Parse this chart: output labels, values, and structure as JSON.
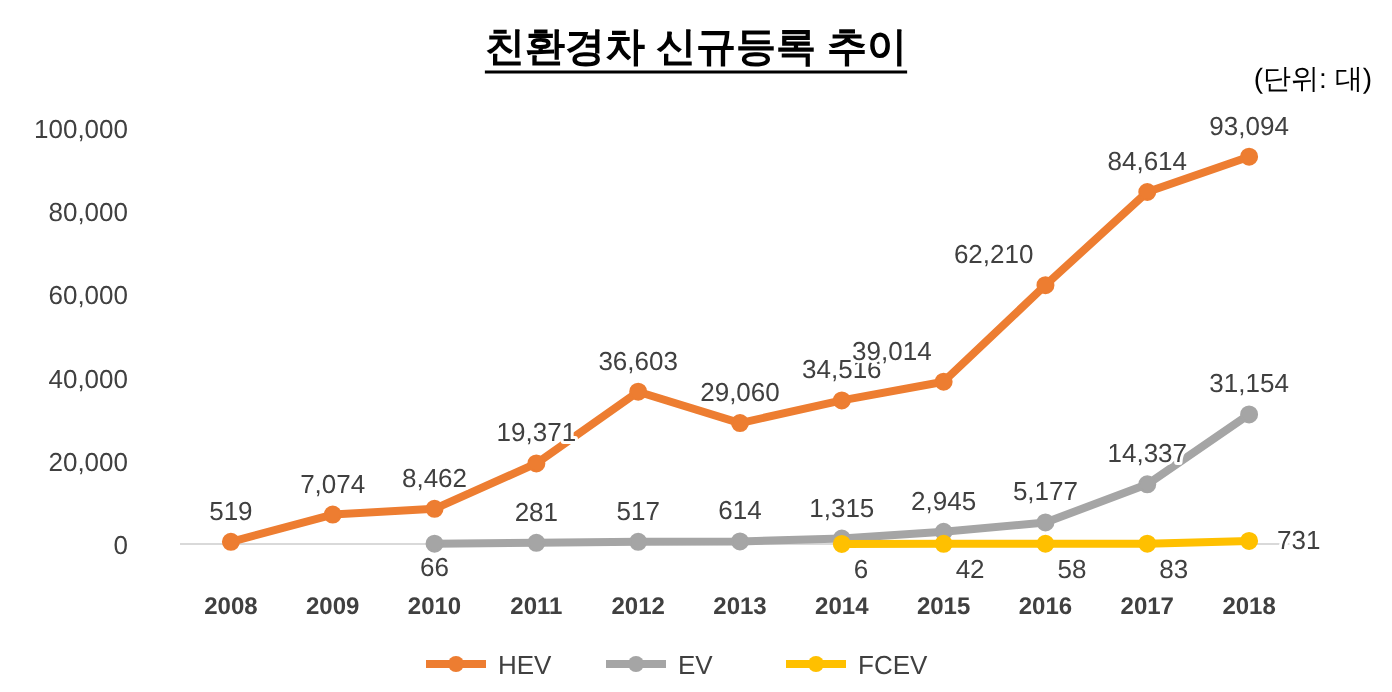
{
  "chart_data": {
    "type": "line",
    "title": "친환경차 신규등록 추이",
    "annotations": [
      "(단위: 대)"
    ],
    "categories": [
      "2008",
      "2009",
      "2010",
      "2011",
      "2012",
      "2013",
      "2014",
      "2015",
      "2016",
      "2017",
      "2018"
    ],
    "ylim": [
      0,
      100000
    ],
    "yticks": [
      {
        "value": 0,
        "label": "0"
      },
      {
        "value": 20000,
        "label": "20,000"
      },
      {
        "value": 40000,
        "label": "40,000"
      },
      {
        "value": 60000,
        "label": "60,000"
      },
      {
        "value": 80000,
        "label": "80,000"
      },
      {
        "value": 100000,
        "label": "100,000"
      }
    ],
    "marker": "circle",
    "legend": "bottom",
    "grid": false,
    "series": [
      {
        "name": "HEV",
        "color": "#ed7d31",
        "values": [
          519,
          7074,
          8462,
          19371,
          36603,
          29060,
          34516,
          39014,
          62210,
          84614,
          93094
        ],
        "value_labels": [
          "519",
          "7,074",
          "8,462",
          "19,371",
          "36,603",
          "29,060",
          "34,516",
          "39,014",
          "62,210",
          "84,614",
          "93,094"
        ]
      },
      {
        "name": "EV",
        "color": "#a5a5a5",
        "values": [
          null,
          null,
          66,
          281,
          517,
          614,
          1315,
          2945,
          5177,
          14337,
          31154
        ],
        "value_labels": [
          null,
          null,
          "66",
          "281",
          "517",
          "614",
          "1,315",
          "2,945",
          "5,177",
          "14,337",
          "31,154"
        ]
      },
      {
        "name": "FCEV",
        "color": "#ffc000",
        "values": [
          null,
          null,
          null,
          null,
          null,
          null,
          6,
          42,
          58,
          83,
          731
        ],
        "value_labels": [
          null,
          null,
          null,
          null,
          null,
          null,
          "6",
          "42",
          "58",
          "83",
          "731"
        ]
      }
    ]
  }
}
